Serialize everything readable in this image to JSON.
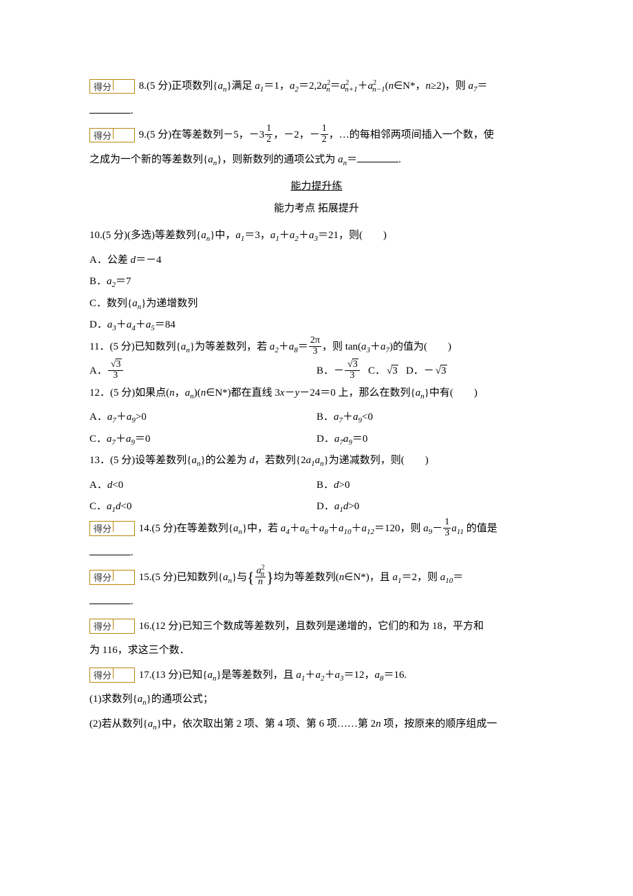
{
  "scoreLabel": "得分",
  "q8": {
    "prefix": "8.(5 分)正项数列{",
    "seq": "a",
    "sub_n": "n",
    "text1": "}满足 ",
    "a1": "a",
    "a1_eq": "＝1，",
    "a2": "a",
    "a2_eq": "＝2,2",
    "ap_text": "＝",
    "plus": "＋",
    "cond": "(",
    "nset": "n∈N*，n≥2)，则 ",
    "a7": "a",
    "eq_blank": "＝"
  },
  "q9": {
    "prefix": "9.(5 分)在等差数列－5，－3",
    "frac1_num": "1",
    "frac1_den": "2",
    "mid1": "，－2，－",
    "frac2_num": "1",
    "frac2_den": "2",
    "mid2": "，…的每相邻两项间插入一个数，使",
    "line2_a": "之成为一个新的等差数列{",
    "line2_b": "}，则新数列的通项公式为 ",
    "an": "a",
    "eq_blank": "＝",
    "period": "."
  },
  "section": {
    "top": "能力提升练",
    "bot": "能力考点  拓展提升"
  },
  "q10": {
    "stem": "10.(5 分)(多选)等差数列{",
    "stem2": "}中，",
    "a1_eq": "＝3，",
    "sum_eq": "＝21，则(　　)",
    "A": "A．公差 ",
    "A2": "＝－4",
    "B": "B．",
    "B2": "＝7",
    "C": "C．数列{",
    "C2": "}为递增数列",
    "D": "D．",
    "D2": "＝84"
  },
  "q11": {
    "stem1": "11．(5 分)已知数列{",
    "stem2": "}为等差数列，若 ",
    "eq": "＝",
    "frac_num": "2π",
    "frac_den": "3",
    "stem3": "，则 tan(",
    "stem4": ")的值为(　　)",
    "A": "A．",
    "A_num": "3",
    "A_den": "3",
    "B": "B．－",
    "B_num": "3",
    "B_den": "3",
    "C": "C．",
    "D": "D．－"
  },
  "q12": {
    "stem1": "12．(5 分)如果点(",
    "stem2": ")(",
    "stem3": "∈N*)都在直线 3",
    "stem4": "－24＝0 上，那么在数列{",
    "stem5": "}中有(　　)",
    "A": "A．",
    "A2": ">0",
    "B": "B．",
    "B2": "<0",
    "C": "C．",
    "C2": "＝0",
    "D": "D．",
    "D2": "＝0"
  },
  "q13": {
    "stem1": "13．(5 分)设等差数列{",
    "stem2": "}的公差为 ",
    "stem3": "，若数列{2",
    "stem4": "}为递减数列，则(　　)",
    "A": "A．",
    "A2": "<0",
    "B": "B．",
    "B2": ">0",
    "C": "C．",
    "C2": "<0",
    "D": "D．",
    "D2": ">0"
  },
  "q14": {
    "stem1": "14.(5 分)在等差数列{",
    "stem2": "}中，若 ",
    "stem3": "＝120，则 ",
    "stem4": "－",
    "frac_num": "1",
    "frac_den": "3",
    "stem5": " 的值是",
    "period": "."
  },
  "q15": {
    "stem1": "15.(5 分)已知数列{",
    "stem2": "}与",
    "frac_num": "a",
    "frac_den": "n",
    "stem3": "均为等差数列(",
    "stem4": "∈N*)，且 ",
    "stem5": "＝2，则 ",
    "stem6": "＝",
    "period": "."
  },
  "q16": {
    "stem1": "16.(12 分)已知三个数成等差数列，且数列是递增的，它们的和为 18，平方和",
    "stem2": "为 116，求这三个数．"
  },
  "q17": {
    "stem1": "17.(13 分)已知{",
    "stem2": "}是等差数列，且 ",
    "stem3": "＝12，",
    "stem4": "＝16.",
    "p1": "(1)求数列{",
    "p1b": "}的通项公式；",
    "p2": "(2)若从数列{",
    "p2b": "}中，依次取出第 2 项、第 4 项、第 6 项……第 2",
    "p2c": " 项，按原来的顺序组成一"
  }
}
